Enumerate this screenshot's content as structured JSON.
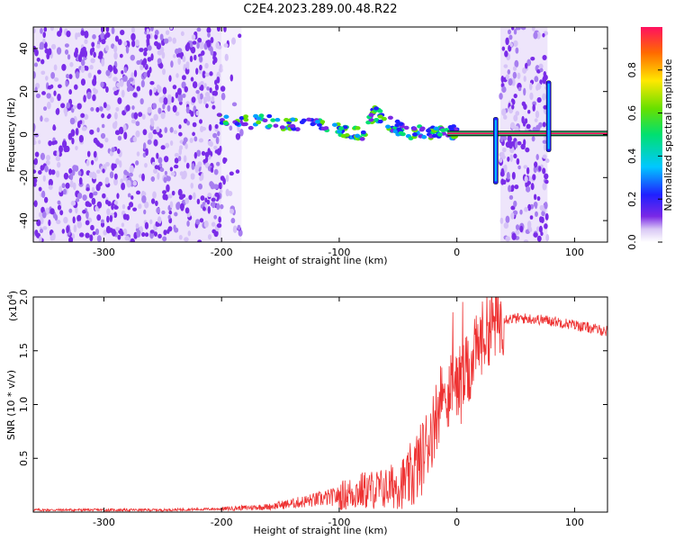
{
  "title": "C2E4.2023.289.00.48.R22",
  "chart_data": [
    {
      "type": "heatmap",
      "xlabel": "Height of straight line (km)",
      "ylabel": "Frequency (Hz)",
      "xlim": [
        -360,
        128
      ],
      "ylim": [
        -50,
        50
      ],
      "xticks": [
        -300,
        -200,
        -100,
        0,
        100
      ],
      "yticks": [
        -40,
        -20,
        0,
        20,
        40
      ],
      "colorbar": {
        "label": "Normalized spectral amplitude",
        "ticks": [
          "0.0",
          "0.2",
          "0.4",
          "0.6",
          "0.8"
        ],
        "range": [
          0,
          1
        ]
      },
      "noise_regions": [
        {
          "x_range": [
            -360,
            -200
          ],
          "y_range": [
            -50,
            50
          ],
          "level": 0.15
        },
        {
          "x_range": [
            -200,
            -183
          ],
          "y_range": [
            -50,
            50
          ],
          "level": 0.05
        },
        {
          "x_range": [
            37,
            77
          ],
          "y_range": [
            -50,
            50
          ],
          "level": 0.15
        }
      ],
      "signal_track": {
        "x": [
          -205,
          -180,
          -160,
          -140,
          -120,
          -100,
          -90,
          -80,
          -70,
          -60,
          -50,
          -40,
          -30,
          -20,
          -10,
          0
        ],
        "y": [
          7,
          6,
          6,
          5,
          4,
          3,
          1,
          0,
          10,
          6,
          3,
          0,
          1,
          1,
          1,
          1
        ]
      },
      "spikes": [
        {
          "x": 33,
          "y_range": [
            -23,
            8
          ]
        },
        {
          "x": 78,
          "y_range": [
            -8,
            25
          ]
        }
      ]
    },
    {
      "type": "line",
      "xlabel": "Height of straight line (km)",
      "ylabel": "SNR (10 * v/v)",
      "multiplier": "(x10",
      "multiplier_exp": "4",
      "multiplier_close": ")",
      "xlim": [
        -360,
        128
      ],
      "ylim": [
        0.0,
        2.0
      ],
      "xticks": [
        -300,
        -200,
        -100,
        0,
        100
      ],
      "yticks": [
        "0.5",
        "1.0",
        "1.5",
        "2.0"
      ],
      "ytick_values": [
        0.5,
        1.0,
        1.5,
        2.0
      ],
      "color": "#ee3333",
      "envelope": {
        "x": [
          -360,
          -250,
          -200,
          -160,
          -140,
          -100,
          -80,
          -60,
          -40,
          -30,
          -20,
          -15,
          -10,
          0,
          10,
          20,
          30,
          40,
          60,
          80,
          100,
          128
        ],
        "y": [
          0.02,
          0.02,
          0.03,
          0.05,
          0.08,
          0.15,
          0.2,
          0.22,
          0.3,
          0.5,
          0.8,
          1.0,
          1.1,
          1.2,
          1.3,
          1.6,
          1.75,
          1.8,
          1.8,
          1.78,
          1.74,
          1.68
        ]
      }
    }
  ]
}
